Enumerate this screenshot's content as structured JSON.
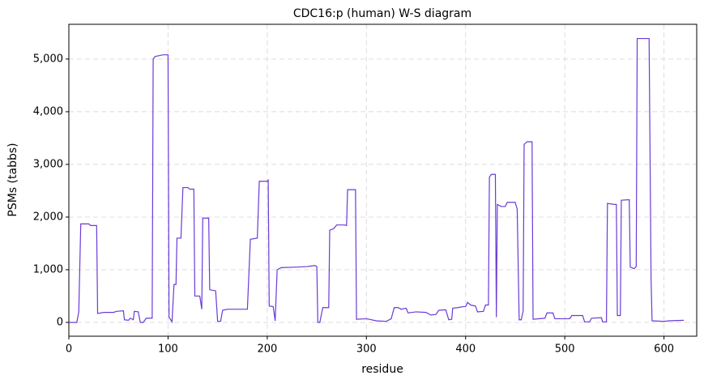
{
  "chart_data": {
    "type": "line",
    "title": "CDC16:p (human) W-S diagram",
    "x_label": "residue",
    "y_label": "PSMs (tabbs)",
    "color": "#6a3bd6",
    "grid": true,
    "xlim": [
      0,
      633
    ],
    "ylim": [
      -262,
      5660
    ],
    "xticks": [
      0,
      100,
      200,
      300,
      400,
      500,
      600
    ],
    "yticks": [
      0,
      {
        "value": 1000,
        "label": "1,000"
      },
      {
        "value": 2000,
        "label": "2,000"
      },
      {
        "value": 3000,
        "label": "3,000"
      },
      {
        "value": 4000,
        "label": "4,000"
      },
      {
        "value": 5000,
        "label": "5,000"
      }
    ],
    "x": [
      0,
      8,
      10,
      12,
      20,
      22,
      28,
      29,
      35,
      45,
      48,
      55,
      56,
      60,
      62,
      65,
      66,
      70,
      72,
      75,
      78,
      84,
      85,
      87,
      95,
      100,
      101,
      104,
      106,
      108,
      109,
      113,
      115,
      120,
      122,
      126,
      127,
      132,
      134,
      135,
      141,
      142,
      148,
      150,
      153,
      155,
      160,
      170,
      180,
      183,
      190,
      192,
      200,
      201,
      202,
      206,
      208,
      210,
      214,
      230,
      240,
      248,
      250,
      251,
      253,
      256,
      262,
      263,
      267,
      270,
      278,
      280,
      281,
      289,
      290,
      300,
      310,
      320,
      325,
      328,
      332,
      335,
      340,
      342,
      350,
      360,
      365,
      370,
      373,
      380,
      383,
      386,
      387,
      392,
      398,
      400,
      402,
      405,
      410,
      412,
      418,
      420,
      423,
      424,
      426,
      430,
      431,
      432,
      436,
      440,
      442,
      450,
      452,
      454,
      456,
      458,
      459,
      462,
      467,
      468,
      480,
      482,
      488,
      490,
      505,
      507,
      518,
      520,
      525,
      527,
      537,
      538,
      542,
      543,
      550,
      552,
      553,
      556,
      557,
      565,
      566,
      570,
      572,
      573,
      585,
      587,
      588,
      600,
      605,
      620
    ],
    "values": [
      0,
      0,
      200,
      1870,
      1870,
      1840,
      1840,
      170,
      190,
      190,
      210,
      220,
      50,
      40,
      80,
      50,
      210,
      200,
      0,
      0,
      80,
      80,
      5000,
      5050,
      5080,
      5080,
      100,
      10,
      720,
      720,
      1600,
      1600,
      2560,
      2560,
      2530,
      2530,
      500,
      500,
      250,
      1980,
      1980,
      620,
      600,
      20,
      20,
      230,
      250,
      250,
      250,
      1580,
      1600,
      2680,
      2680,
      2700,
      310,
      300,
      30,
      1000,
      1040,
      1050,
      1060,
      1080,
      1060,
      0,
      0,
      280,
      280,
      1750,
      1780,
      1850,
      1850,
      1840,
      2520,
      2520,
      60,
      70,
      30,
      20,
      70,
      280,
      280,
      250,
      270,
      180,
      200,
      190,
      140,
      150,
      230,
      240,
      50,
      60,
      270,
      280,
      300,
      300,
      380,
      330,
      310,
      200,
      210,
      330,
      330,
      2760,
      2810,
      2810,
      100,
      2240,
      2200,
      2200,
      2280,
      2280,
      2150,
      50,
      50,
      210,
      3380,
      3430,
      3430,
      60,
      80,
      180,
      180,
      70,
      70,
      130,
      130,
      10,
      10,
      80,
      90,
      10,
      10,
      2260,
      2240,
      2240,
      130,
      130,
      2320,
      2330,
      1050,
      1020,
      1060,
      5390,
      5390,
      800,
      30,
      20,
      30,
      40
    ]
  }
}
